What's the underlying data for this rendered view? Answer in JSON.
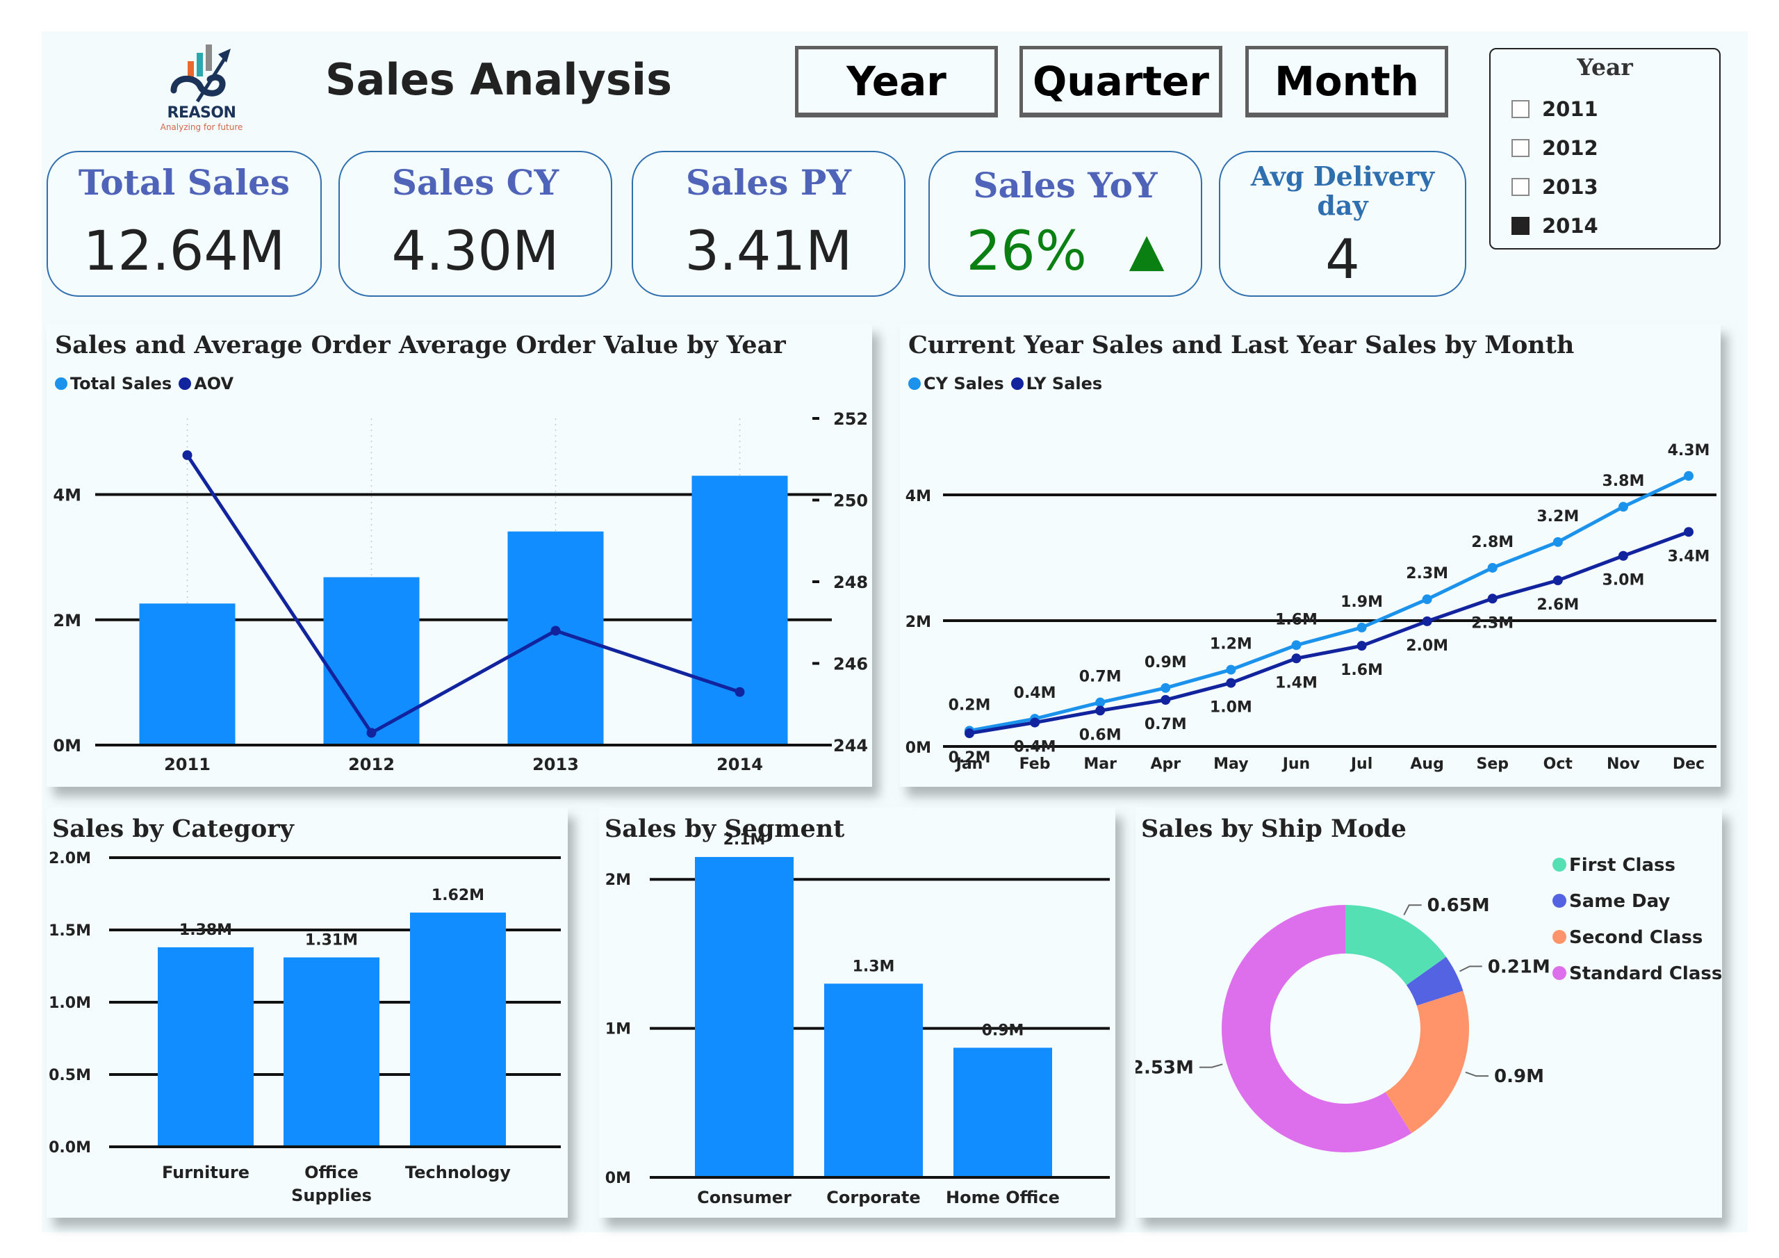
{
  "brand": {
    "name": "REASON",
    "tagline": "Analyzing for future",
    "colors": {
      "navy": "#1b3358",
      "orange": "#e8692d",
      "teal": "#2aa8b0",
      "gray": "#8a8a8a"
    }
  },
  "header": {
    "title": "Sales Analysis",
    "period_buttons": [
      {
        "label": "Year"
      },
      {
        "label": "Quarter"
      },
      {
        "label": "Month"
      }
    ]
  },
  "year_slicer": {
    "title": "Year",
    "items": [
      {
        "label": "2011",
        "checked": false
      },
      {
        "label": "2012",
        "checked": false
      },
      {
        "label": "2013",
        "checked": false
      },
      {
        "label": "2014",
        "checked": true
      }
    ]
  },
  "kpis": [
    {
      "label": "Total Sales",
      "value": "12.64M"
    },
    {
      "label": "Sales CY",
      "value": "4.30M"
    },
    {
      "label": "Sales PY",
      "value": "3.41M"
    },
    {
      "label": "Sales YoY",
      "value": "26%",
      "trend": "up",
      "trend_icon": "▲",
      "color": "#0a7f12"
    },
    {
      "label_line1": "Avg Delivery",
      "label_line2": "day",
      "value": "4"
    }
  ],
  "colors": {
    "bar": "#118dff",
    "line_dark": "#12239e",
    "line_light": "#1b93ec",
    "first_class": "#55e0b4",
    "same_day": "#5463e2",
    "second_class": "#ff946a",
    "standard_class": "#de6fec"
  },
  "chart_data": [
    {
      "id": "sales_aov_by_year",
      "type": "bar",
      "title": "Sales and Average Order Average Order Value by Year",
      "legend": [
        "Total Sales",
        "AOV"
      ],
      "legend_position": "top-left",
      "categories": [
        "2011",
        "2012",
        "2013",
        "2014"
      ],
      "series": [
        {
          "name": "Total Sales",
          "type": "bar",
          "axis": "left",
          "values": [
            2.26,
            2.68,
            3.41,
            4.3
          ],
          "unit": "M"
        },
        {
          "name": "AOV",
          "type": "line",
          "axis": "right",
          "values": [
            251.1,
            244.3,
            246.8,
            245.3
          ]
        }
      ],
      "y_left": {
        "ticks": [
          "0M",
          "2M",
          "4M"
        ],
        "tick_values": [
          0,
          2,
          4
        ],
        "range": [
          0,
          5.06
        ]
      },
      "y_right": {
        "ticks": [
          "244",
          "246",
          "248",
          "250",
          "252"
        ],
        "tick_values": [
          244,
          246,
          248,
          250,
          252
        ],
        "range": [
          244,
          252
        ]
      },
      "grid": true
    },
    {
      "id": "cy_ly_by_month",
      "type": "line",
      "title": "Current Year Sales and Last Year Sales by Month",
      "legend": [
        "CY Sales",
        "LY Sales"
      ],
      "legend_position": "top-left",
      "x": [
        "Jan",
        "Feb",
        "Mar",
        "Apr",
        "May",
        "Jun",
        "Jul",
        "Aug",
        "Sep",
        "Oct",
        "Nov",
        "Dec"
      ],
      "series": [
        {
          "name": "CY Sales",
          "values": [
            0.25,
            0.44,
            0.7,
            0.93,
            1.22,
            1.61,
            1.89,
            2.34,
            2.84,
            3.25,
            3.81,
            4.3
          ],
          "labels": [
            "0.2M",
            "0.4M",
            "0.7M",
            "0.9M",
            "1.2M",
            "1.6M",
            "1.9M",
            "2.3M",
            "2.8M",
            "3.2M",
            "3.8M",
            "4.3M"
          ]
        },
        {
          "name": "LY Sales",
          "values": [
            0.21,
            0.38,
            0.57,
            0.74,
            1.01,
            1.4,
            1.6,
            1.99,
            2.35,
            2.64,
            3.03,
            3.41
          ],
          "labels": [
            "0.2M",
            "0.4M",
            "0.6M",
            "0.7M",
            "1.0M",
            "1.4M",
            "1.6M",
            "2.0M",
            "2.3M",
            "2.6M",
            "3.0M",
            "3.4M"
          ]
        }
      ],
      "y": {
        "ticks": [
          "0M",
          "2M",
          "4M"
        ],
        "tick_values": [
          0,
          2,
          4
        ],
        "range": [
          0,
          5.06
        ]
      },
      "grid": true
    },
    {
      "id": "sales_by_category",
      "type": "bar",
      "title": "Sales by Category",
      "categories": [
        "Furniture",
        "Office Supplies",
        "Technology"
      ],
      "category_lines": [
        [
          "Furniture"
        ],
        [
          "Office",
          "Supplies"
        ],
        [
          "Technology"
        ]
      ],
      "values": [
        1.38,
        1.31,
        1.62
      ],
      "labels": [
        "1.38M",
        "1.31M",
        "1.62M"
      ],
      "y": {
        "ticks": [
          "0.0M",
          "0.5M",
          "1.0M",
          "1.5M",
          "2.0M"
        ],
        "tick_values": [
          0,
          0.5,
          1.0,
          1.5,
          2.0
        ],
        "range": [
          0,
          2.0
        ]
      },
      "grid": true
    },
    {
      "id": "sales_by_segment",
      "type": "bar",
      "title": "Sales by Segment",
      "categories": [
        "Consumer",
        "Corporate",
        "Home Office"
      ],
      "values": [
        2.15,
        1.3,
        0.87
      ],
      "labels": [
        "2.1M",
        "1.3M",
        "0.9M"
      ],
      "y": {
        "ticks": [
          "0M",
          "1M",
          "2M"
        ],
        "tick_values": [
          0,
          1,
          2
        ],
        "range": [
          0,
          2.5
        ]
      },
      "grid": true
    },
    {
      "id": "sales_by_ship_mode",
      "type": "pie",
      "variant": "donut",
      "title": "Sales by Ship Mode",
      "legend_position": "top-right",
      "categories": [
        "First Class",
        "Same Day",
        "Second Class",
        "Standard Class"
      ],
      "values": [
        0.65,
        0.21,
        0.9,
        2.53
      ],
      "labels": [
        "0.65M",
        "0.21M",
        "0.9M",
        "2.53M"
      ]
    }
  ]
}
